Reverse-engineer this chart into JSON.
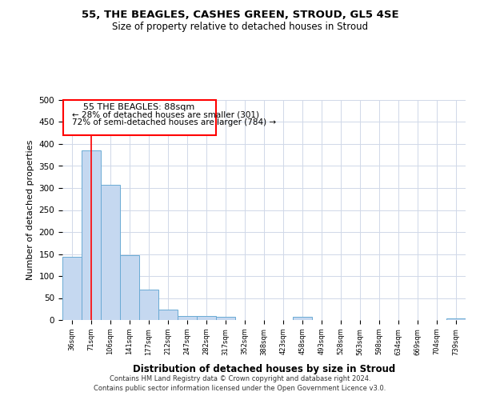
{
  "title1": "55, THE BEAGLES, CASHES GREEN, STROUD, GL5 4SE",
  "title2": "Size of property relative to detached houses in Stroud",
  "xlabel": "Distribution of detached houses by size in Stroud",
  "ylabel": "Number of detached properties",
  "categories": [
    "36sqm",
    "71sqm",
    "106sqm",
    "141sqm",
    "177sqm",
    "212sqm",
    "247sqm",
    "282sqm",
    "317sqm",
    "352sqm",
    "388sqm",
    "423sqm",
    "458sqm",
    "493sqm",
    "528sqm",
    "563sqm",
    "598sqm",
    "634sqm",
    "669sqm",
    "704sqm",
    "739sqm"
  ],
  "values": [
    143,
    385,
    307,
    148,
    70,
    24,
    10,
    10,
    8,
    0,
    0,
    0,
    8,
    0,
    0,
    0,
    0,
    0,
    0,
    0,
    3
  ],
  "bar_color": "#c5d8f0",
  "bar_edge_color": "#6aaad4",
  "red_line_x": 1.0,
  "annotation_text_line1": "55 THE BEAGLES: 88sqm",
  "annotation_text_line2": "← 28% of detached houses are smaller (301)",
  "annotation_text_line3": "72% of semi-detached houses are larger (784) →",
  "annotation_box_color": "white",
  "annotation_box_edge": "red",
  "ylim": [
    0,
    500
  ],
  "yticks": [
    0,
    50,
    100,
    150,
    200,
    250,
    300,
    350,
    400,
    450,
    500
  ],
  "footer": "Contains HM Land Registry data © Crown copyright and database right 2024.\nContains public sector information licensed under the Open Government Licence v3.0.",
  "background_color": "white",
  "grid_color": "#d0d8e8"
}
